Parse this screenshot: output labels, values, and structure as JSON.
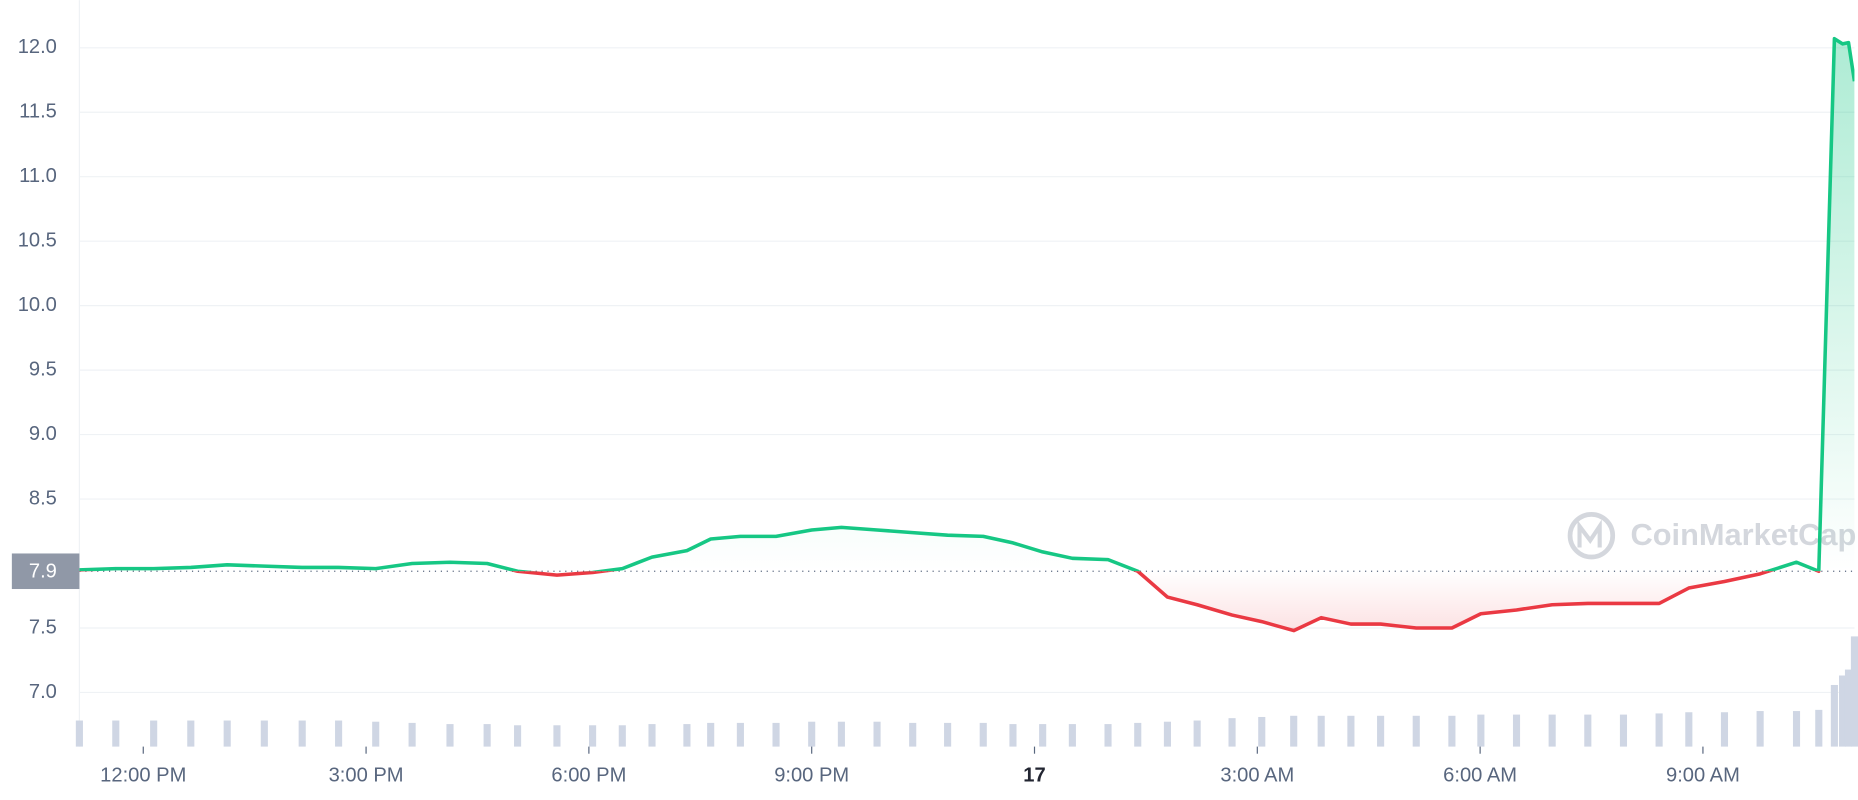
{
  "chart_data": {
    "type": "line",
    "x": [
      11.14,
      11.63,
      12.14,
      12.64,
      13.13,
      13.63,
      14.14,
      14.63,
      15.13,
      15.62,
      16.13,
      16.63,
      17.04,
      17.57,
      18.05,
      18.45,
      18.85,
      19.32,
      19.64,
      20.04,
      20.52,
      21.0,
      21.4,
      21.88,
      22.36,
      22.83,
      23.31,
      23.71,
      24.11,
      24.51,
      24.99,
      25.39,
      25.79,
      26.19,
      26.66,
      27.06,
      27.49,
      27.86,
      28.26,
      28.66,
      29.14,
      29.62,
      30.01,
      30.49,
      30.97,
      31.45,
      31.93,
      32.41,
      32.81,
      33.29,
      33.77,
      34.26,
      34.56,
      34.77,
      34.88,
      34.96,
      35.04
    ],
    "values": [
      7.95,
      7.96,
      7.96,
      7.97,
      7.99,
      7.98,
      7.97,
      7.97,
      7.96,
      8.0,
      8.01,
      8.0,
      7.94,
      7.91,
      7.93,
      7.96,
      8.05,
      8.1,
      8.19,
      8.21,
      8.21,
      8.26,
      8.28,
      8.26,
      8.24,
      8.22,
      8.21,
      8.16,
      8.09,
      8.04,
      8.03,
      7.94,
      7.74,
      7.68,
      7.6,
      7.55,
      7.48,
      7.58,
      7.53,
      7.53,
      7.5,
      7.5,
      7.61,
      7.64,
      7.68,
      7.69,
      7.69,
      7.69,
      7.81,
      7.86,
      7.92,
      8.01,
      7.94,
      12.07,
      12.03,
      12.04,
      11.74
    ],
    "volume": [
      22,
      22,
      22,
      22,
      22,
      22,
      22,
      22,
      21,
      20,
      19,
      19,
      18,
      18,
      18,
      18,
      19,
      19,
      20,
      20,
      20,
      21,
      21,
      21,
      20,
      20,
      20,
      19,
      19,
      19,
      19,
      20,
      21,
      22,
      24,
      25,
      26,
      26,
      26,
      26,
      26,
      26,
      27,
      27,
      27,
      27,
      27,
      28,
      29,
      29,
      30,
      30,
      31,
      52,
      60,
      65,
      93
    ],
    "up_color": "#16c784",
    "down_color": "#ea3943",
    "baseline": {
      "value": 7.94,
      "label": "7.9"
    },
    "xlim": [
      11.14,
      35.04
    ],
    "xticks": [
      {
        "value": 12,
        "label": "12:00 PM"
      },
      {
        "value": 15,
        "label": "3:00 PM"
      },
      {
        "value": 18,
        "label": "6:00 PM"
      },
      {
        "value": 21,
        "label": "9:00 PM"
      },
      {
        "value": 24,
        "label": "17"
      },
      {
        "value": 27,
        "label": "3:00 AM"
      },
      {
        "value": 30,
        "label": "6:00 AM"
      },
      {
        "value": 33,
        "label": "9:00 AM"
      }
    ],
    "ylim": [
      6.58,
      12.37
    ],
    "yticks": [
      {
        "value": 7,
        "label": "7.0"
      },
      7.5,
      8.5,
      {
        "value": 9,
        "label": "9.0"
      },
      9.5,
      {
        "value": 10,
        "label": "10.0"
      },
      10.5,
      {
        "value": 11,
        "label": "11.0"
      },
      11.5,
      {
        "value": 12,
        "label": "12.0"
      }
    ],
    "grid": true,
    "watermark": "CoinMarketCap"
  }
}
